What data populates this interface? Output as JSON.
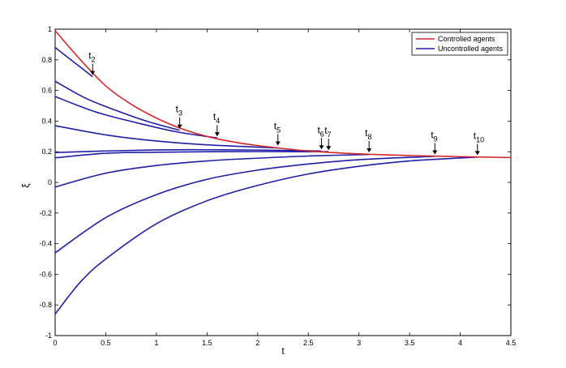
{
  "chart_data": {
    "type": "line",
    "xlabel": "t",
    "ylabel": "ξ",
    "xlim": [
      0,
      4.5
    ],
    "ylim": [
      -1,
      1
    ],
    "x_ticks": [
      "0",
      "0.5",
      "1",
      "1.5",
      "2",
      "2.5",
      "3",
      "3.5",
      "4",
      "4.5"
    ],
    "y_ticks": [
      "1",
      "0.8",
      "0.6",
      "0.4",
      "0.2",
      "0",
      "-0.2",
      "-0.4",
      "-0.6",
      "-0.8",
      "-1"
    ],
    "grid": false,
    "legend_position": "top-right",
    "legend": [
      {
        "label": "Controlled agents",
        "color": "#d62728"
      },
      {
        "label": "Uncontrolled agents",
        "color": "#1f1fa8"
      }
    ],
    "series": [
      {
        "name": "Controlled agents",
        "color": "#d62728",
        "x": [
          0,
          0.25,
          0.5,
          0.75,
          1,
          1.25,
          1.5,
          1.75,
          2,
          2.5,
          3,
          3.5,
          4,
          4.5
        ],
        "y": [
          0.99,
          0.8,
          0.63,
          0.51,
          0.42,
          0.35,
          0.3,
          0.265,
          0.24,
          0.205,
          0.186,
          0.175,
          0.168,
          0.162
        ]
      },
      {
        "name": "Uncontrolled agents",
        "color": "#1f1fa8",
        "x": [
          0,
          0.37
        ],
        "y": [
          0.88,
          0.69
        ]
      },
      {
        "name": "Uncontrolled agents",
        "color": "#1f1fa8",
        "x": [
          0,
          0.3,
          0.6,
          0.9,
          1.23
        ],
        "y": [
          0.66,
          0.55,
          0.47,
          0.4,
          0.34
        ]
      },
      {
        "name": "Uncontrolled agents",
        "color": "#1f1fa8",
        "x": [
          0,
          0.4,
          0.8,
          1.2,
          1.6
        ],
        "y": [
          0.56,
          0.46,
          0.39,
          0.33,
          0.29
        ]
      },
      {
        "name": "Uncontrolled agents",
        "color": "#1f1fa8",
        "x": [
          0,
          0.5,
          1,
          1.5,
          2.2
        ],
        "y": [
          0.37,
          0.31,
          0.27,
          0.245,
          0.225
        ]
      },
      {
        "name": "Uncontrolled agents",
        "color": "#1f1fa8",
        "x": [
          0,
          0.5,
          1,
          1.5,
          2.0,
          2.63
        ],
        "y": [
          0.195,
          0.205,
          0.212,
          0.213,
          0.211,
          0.205
        ]
      },
      {
        "name": "Uncontrolled agents",
        "color": "#1f1fa8",
        "x": [
          0,
          0.5,
          1,
          1.5,
          2,
          2.7
        ],
        "y": [
          0.16,
          0.19,
          0.197,
          0.2,
          0.201,
          0.2
        ]
      },
      {
        "name": "Uncontrolled agents",
        "color": "#1f1fa8",
        "x": [
          0,
          0.5,
          1,
          1.5,
          2,
          2.5,
          3.1
        ],
        "y": [
          -0.03,
          0.06,
          0.11,
          0.14,
          0.158,
          0.172,
          0.182
        ]
      },
      {
        "name": "Uncontrolled agents",
        "color": "#1f1fa8",
        "x": [
          0,
          0.5,
          1,
          1.5,
          2,
          2.5,
          3,
          3.75
        ],
        "y": [
          -0.46,
          -0.23,
          -0.08,
          0.02,
          0.08,
          0.12,
          0.148,
          0.17
        ]
      },
      {
        "name": "Uncontrolled agents",
        "color": "#1f1fa8",
        "x": [
          0,
          0.25,
          0.5,
          1,
          1.5,
          2,
          2.5,
          3,
          3.5,
          4.17
        ],
        "y": [
          -0.86,
          -0.65,
          -0.5,
          -0.27,
          -0.12,
          -0.02,
          0.055,
          0.105,
          0.14,
          0.165
        ]
      }
    ],
    "annotations": [
      {
        "main": "t",
        "sub": "2",
        "x": 0.37,
        "y": 0.69
      },
      {
        "main": "t",
        "sub": "3",
        "x": 1.23,
        "y": 0.34
      },
      {
        "main": "t",
        "sub": "4",
        "x": 1.6,
        "y": 0.29
      },
      {
        "main": "t",
        "sub": "5",
        "x": 2.2,
        "y": 0.23
      },
      {
        "main": "t",
        "sub": "6",
        "x": 2.63,
        "y": 0.205
      },
      {
        "main": "t",
        "sub": "7",
        "x": 2.7,
        "y": 0.2
      },
      {
        "main": "t",
        "sub": "8",
        "x": 3.1,
        "y": 0.185
      },
      {
        "main": "t",
        "sub": "9",
        "x": 3.75,
        "y": 0.172
      },
      {
        "main": "t",
        "sub": "10",
        "x": 4.17,
        "y": 0.167
      }
    ]
  }
}
